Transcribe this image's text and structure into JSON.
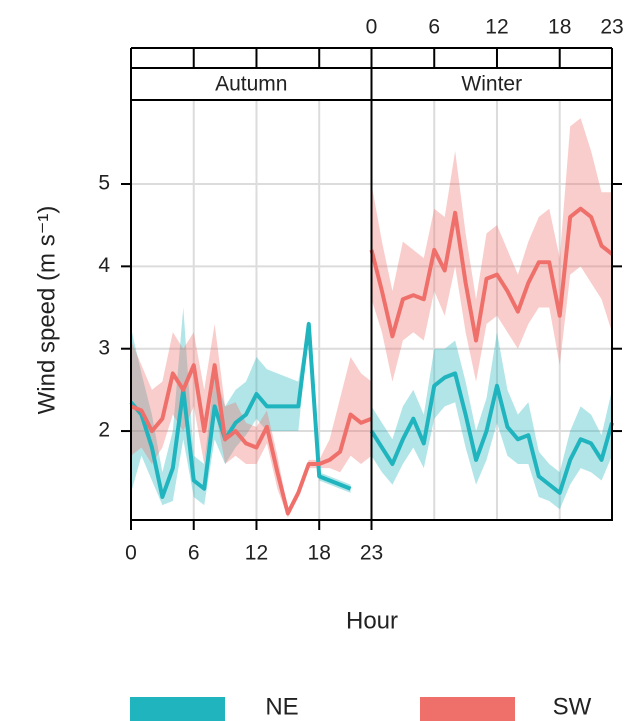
{
  "chart_data": {
    "type": "line",
    "xlabel": "Hour",
    "ylabel": "Wind speed (m s⁻¹)",
    "x": [
      0,
      1,
      2,
      3,
      4,
      5,
      6,
      7,
      8,
      9,
      10,
      11,
      12,
      13,
      14,
      15,
      16,
      17,
      18,
      19,
      20,
      21,
      22,
      23
    ],
    "xlim": [
      0,
      23
    ],
    "xticks": [
      0,
      6,
      12,
      18,
      23
    ],
    "ylim": [
      0.92,
      6.02
    ],
    "yticks": [
      2,
      3,
      4,
      5
    ],
    "grid": true,
    "band_opacity": 0.35,
    "panels": [
      {
        "strip": "Autumn",
        "series": [
          {
            "name": "NE",
            "color": "#20b4be",
            "values": [
              2.35,
              2.2,
              1.8,
              1.2,
              1.55,
              2.5,
              1.4,
              1.3,
              2.3,
              1.9,
              2.1,
              2.2,
              2.45,
              2.3,
              2.3,
              2.3,
              2.3,
              3.3,
              1.45,
              1.4,
              1.35,
              1.3,
              null,
              null
            ],
            "lower": [
              1.25,
              1.7,
              1.4,
              1.1,
              1.15,
              1.9,
              1.2,
              1.1,
              1.9,
              1.6,
              1.8,
              1.95,
              2.15,
              2.0,
              2.0,
              2.0,
              2.0,
              3.25,
              1.4,
              1.35,
              1.3,
              1.25,
              null,
              null
            ],
            "upper": [
              3.25,
              2.7,
              2.2,
              1.5,
              2.0,
              3.5,
              1.7,
              1.6,
              2.7,
              2.3,
              2.5,
              2.6,
              2.9,
              2.75,
              2.7,
              2.65,
              2.6,
              3.35,
              1.5,
              1.45,
              1.4,
              1.35,
              null,
              null
            ]
          },
          {
            "name": "SW",
            "color": "#ef706b",
            "values": [
              2.3,
              2.25,
              2.0,
              2.15,
              2.7,
              2.5,
              2.8,
              2.0,
              2.8,
              1.9,
              2.0,
              1.85,
              1.8,
              2.05,
              1.5,
              1.0,
              1.25,
              1.6,
              1.6,
              1.65,
              1.75,
              2.2,
              2.1,
              2.15
            ],
            "lower": [
              1.7,
              1.8,
              1.6,
              1.8,
              2.2,
              2.0,
              2.3,
              1.6,
              2.3,
              1.6,
              1.7,
              1.6,
              1.6,
              1.85,
              1.3,
              0.95,
              1.2,
              1.55,
              1.55,
              1.55,
              1.5,
              1.7,
              1.6,
              1.7
            ],
            "upper": [
              3.1,
              2.8,
              2.5,
              2.6,
              3.2,
              3.0,
              3.2,
              2.5,
              3.3,
              2.3,
              2.35,
              2.1,
              2.05,
              2.25,
              1.7,
              1.05,
              1.3,
              1.65,
              1.65,
              1.9,
              2.4,
              2.9,
              2.7,
              2.6
            ]
          }
        ]
      },
      {
        "strip": "Winter",
        "series": [
          {
            "name": "NE",
            "color": "#20b4be",
            "values": [
              2.0,
              1.8,
              1.6,
              1.9,
              2.15,
              1.85,
              2.55,
              2.65,
              2.7,
              2.2,
              1.65,
              2.0,
              2.55,
              2.05,
              1.9,
              1.95,
              1.45,
              1.35,
              1.25,
              1.65,
              1.9,
              1.85,
              1.65,
              2.1
            ],
            "lower": [
              1.7,
              1.5,
              1.35,
              1.6,
              1.8,
              1.55,
              2.15,
              2.3,
              2.35,
              1.8,
              1.35,
              1.65,
              2.1,
              1.7,
              1.6,
              1.6,
              1.2,
              1.15,
              1.05,
              1.35,
              1.55,
              1.5,
              1.4,
              1.7
            ],
            "upper": [
              2.3,
              2.1,
              1.9,
              2.3,
              2.5,
              2.2,
              3.0,
              3.0,
              3.1,
              2.6,
              2.0,
              2.4,
              3.2,
              2.5,
              2.2,
              2.35,
              1.75,
              1.6,
              1.5,
              2.0,
              2.3,
              2.2,
              1.95,
              2.5
            ]
          },
          {
            "name": "SW",
            "color": "#ef706b",
            "values": [
              4.2,
              3.7,
              3.15,
              3.6,
              3.65,
              3.6,
              4.2,
              3.95,
              4.65,
              3.8,
              3.1,
              3.85,
              3.9,
              3.7,
              3.45,
              3.8,
              4.05,
              4.05,
              3.4,
              4.6,
              4.7,
              4.6,
              4.25,
              4.15
            ],
            "lower": [
              3.6,
              3.2,
              2.6,
              3.1,
              3.2,
              3.1,
              3.7,
              3.4,
              4.0,
              3.2,
              2.6,
              3.3,
              3.4,
              3.2,
              3.0,
              3.3,
              3.5,
              3.5,
              2.8,
              3.9,
              4.0,
              3.8,
              3.6,
              3.2
            ],
            "upper": [
              5.0,
              4.3,
              3.7,
              4.3,
              4.2,
              4.1,
              4.7,
              4.6,
              5.4,
              4.4,
              3.6,
              4.4,
              4.5,
              4.2,
              3.9,
              4.3,
              4.6,
              4.7,
              4.1,
              5.7,
              5.8,
              5.4,
              4.9,
              4.9
            ]
          }
        ]
      }
    ]
  }
}
